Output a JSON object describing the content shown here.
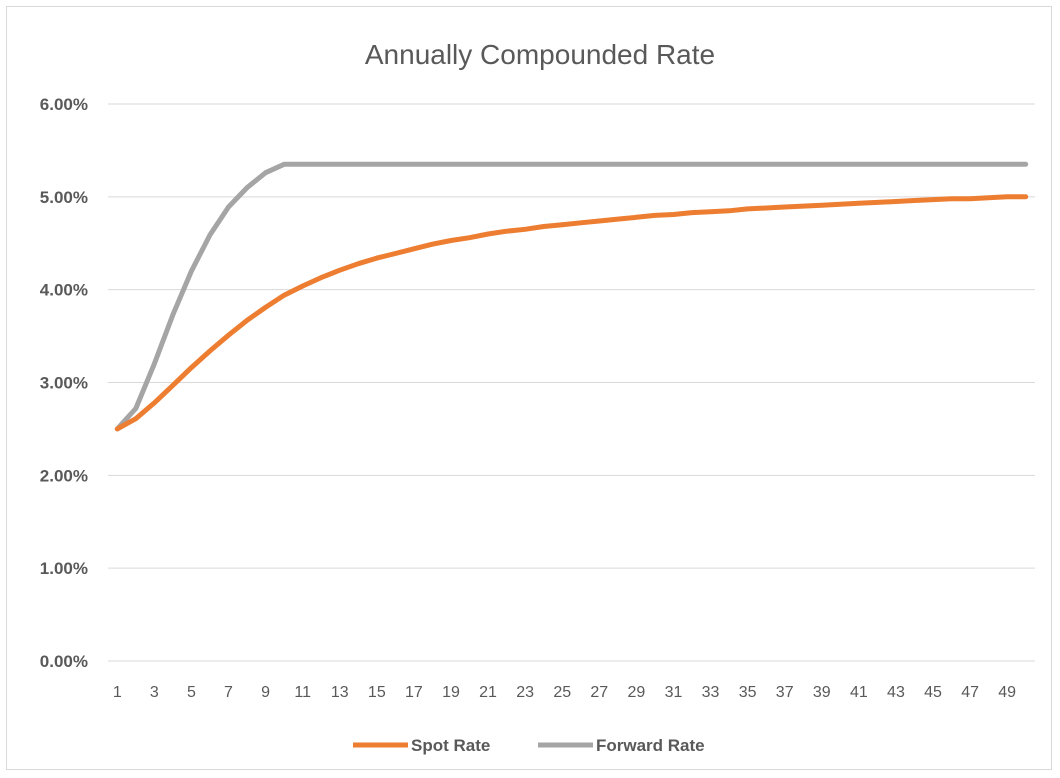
{
  "chart_data": {
    "type": "line",
    "title": "Annually Compounded Rate",
    "xlabel": "",
    "ylabel": "",
    "x": [
      1,
      2,
      3,
      4,
      5,
      6,
      7,
      8,
      9,
      10,
      11,
      12,
      13,
      14,
      15,
      16,
      17,
      18,
      19,
      20,
      21,
      22,
      23,
      24,
      25,
      26,
      27,
      28,
      29,
      30,
      31,
      32,
      33,
      34,
      35,
      36,
      37,
      38,
      39,
      40,
      41,
      42,
      43,
      44,
      45,
      46,
      47,
      48,
      49,
      50
    ],
    "x_tick_labels": [
      "1",
      "3",
      "5",
      "7",
      "9",
      "11",
      "13",
      "15",
      "17",
      "19",
      "21",
      "23",
      "25",
      "27",
      "29",
      "31",
      "33",
      "35",
      "37",
      "39",
      "41",
      "43",
      "45",
      "47",
      "49"
    ],
    "y_ticks": [
      0,
      0.01,
      0.02,
      0.03,
      0.04,
      0.05,
      0.06
    ],
    "y_tick_labels": [
      "0.00%",
      "1.00%",
      "2.00%",
      "3.00%",
      "4.00%",
      "5.00%",
      "6.00%"
    ],
    "ylim": [
      0,
      0.06
    ],
    "grid": true,
    "legend_position": "bottom",
    "series": [
      {
        "name": "Spot Rate",
        "color": "#ed7d31",
        "values": [
          0.025,
          0.0261,
          0.0278,
          0.0297,
          0.0316,
          0.0334,
          0.0351,
          0.0367,
          0.0381,
          0.0394,
          0.0404,
          0.0413,
          0.0421,
          0.0428,
          0.0434,
          0.0439,
          0.0444,
          0.0449,
          0.0453,
          0.0456,
          0.046,
          0.0463,
          0.0465,
          0.0468,
          0.047,
          0.0472,
          0.0474,
          0.0476,
          0.0478,
          0.048,
          0.0481,
          0.0483,
          0.0484,
          0.0485,
          0.0487,
          0.0488,
          0.0489,
          0.049,
          0.0491,
          0.0492,
          0.0493,
          0.0494,
          0.0495,
          0.0496,
          0.0497,
          0.0498,
          0.0498,
          0.0499,
          0.05,
          0.05
        ]
      },
      {
        "name": "Forward Rate",
        "color": "#a5a5a5",
        "values": [
          0.025,
          0.0272,
          0.032,
          0.0373,
          0.042,
          0.0459,
          0.0489,
          0.051,
          0.0526,
          0.0535,
          0.0535,
          0.0535,
          0.0535,
          0.0535,
          0.0535,
          0.0535,
          0.0535,
          0.0535,
          0.0535,
          0.0535,
          0.0535,
          0.0535,
          0.0535,
          0.0535,
          0.0535,
          0.0535,
          0.0535,
          0.0535,
          0.0535,
          0.0535,
          0.0535,
          0.0535,
          0.0535,
          0.0535,
          0.0535,
          0.0535,
          0.0535,
          0.0535,
          0.0535,
          0.0535,
          0.0535,
          0.0535,
          0.0535,
          0.0535,
          0.0535,
          0.0535,
          0.0535,
          0.0535,
          0.0535,
          0.0535
        ]
      }
    ]
  }
}
